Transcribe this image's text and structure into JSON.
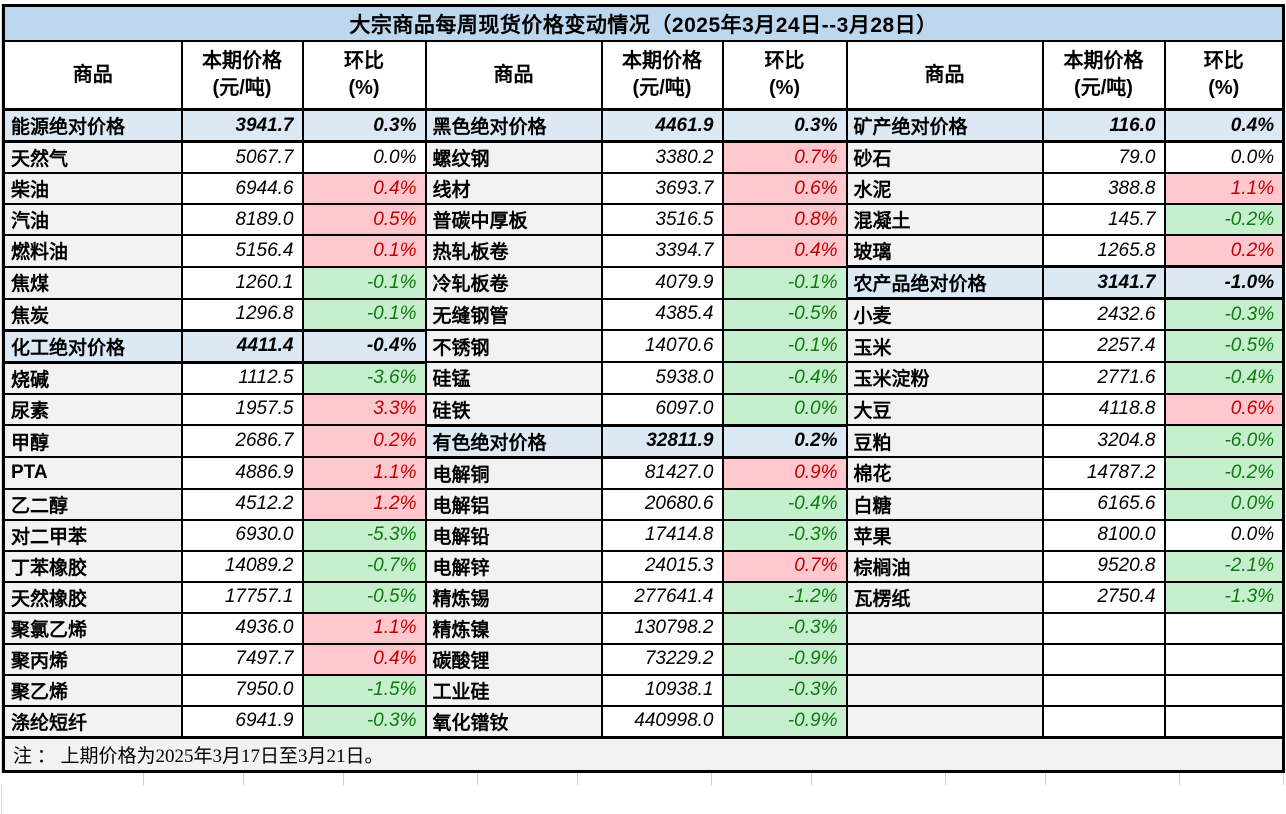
{
  "title": "大宗商品每周现货价格变动情况（2025年3月24日--3月28日）",
  "note": "注 ： 上期价格为2025年3月17日至3月21日。",
  "palette": {
    "title_bg": "#BDD7EE",
    "section_bg": "#DCE9F5",
    "name_bg": "#F2F2F2",
    "up_bg": "#FFC7CE",
    "up_text": "#C00000",
    "down_bg": "#C6EFCE",
    "down_text": "#0E7A0E"
  },
  "table": {
    "header": {
      "commodity": "商品",
      "price_line1": "本期价格",
      "price_line2": "(元/吨)",
      "pct_line1": "环比",
      "pct_line2": "(%)"
    },
    "row_count": 20,
    "groups": [
      {
        "rows": [
          {
            "type": "section",
            "name": "能源绝对价格",
            "price": "3941.7",
            "pct": "0.3%",
            "dir": "up"
          },
          {
            "type": "item",
            "name": "天然气",
            "price": "5067.7",
            "pct": "0.0%",
            "dir": "flat"
          },
          {
            "type": "item",
            "name": "柴油",
            "price": "6944.6",
            "pct": "0.4%",
            "dir": "up"
          },
          {
            "type": "item",
            "name": "汽油",
            "price": "8189.0",
            "pct": "0.5%",
            "dir": "up"
          },
          {
            "type": "item",
            "name": "燃料油",
            "price": "5156.4",
            "pct": "0.1%",
            "dir": "up"
          },
          {
            "type": "item",
            "name": "焦煤",
            "price": "1260.1",
            "pct": "-0.1%",
            "dir": "down"
          },
          {
            "type": "item",
            "name": "焦炭",
            "price": "1296.8",
            "pct": "-0.1%",
            "dir": "down"
          },
          {
            "type": "section",
            "name": "化工绝对价格",
            "price": "4411.4",
            "pct": "-0.4%",
            "dir": "down"
          },
          {
            "type": "item",
            "name": "烧碱",
            "price": "1112.5",
            "pct": "-3.6%",
            "dir": "down"
          },
          {
            "type": "item",
            "name": "尿素",
            "price": "1957.5",
            "pct": "3.3%",
            "dir": "up"
          },
          {
            "type": "item",
            "name": "甲醇",
            "price": "2686.7",
            "pct": "0.2%",
            "dir": "up"
          },
          {
            "type": "item",
            "name": "PTA",
            "price": "4886.9",
            "pct": "1.1%",
            "dir": "up"
          },
          {
            "type": "item",
            "name": "乙二醇",
            "price": "4512.2",
            "pct": "1.2%",
            "dir": "up"
          },
          {
            "type": "item",
            "name": "对二甲苯",
            "price": "6930.0",
            "pct": "-5.3%",
            "dir": "down"
          },
          {
            "type": "item",
            "name": "丁苯橡胶",
            "price": "14089.2",
            "pct": "-0.7%",
            "dir": "down"
          },
          {
            "type": "item",
            "name": "天然橡胶",
            "price": "17757.1",
            "pct": "-0.5%",
            "dir": "down"
          },
          {
            "type": "item",
            "name": "聚氯乙烯",
            "price": "4936.0",
            "pct": "1.1%",
            "dir": "up"
          },
          {
            "type": "item",
            "name": "聚丙烯",
            "price": "7497.7",
            "pct": "0.4%",
            "dir": "up"
          },
          {
            "type": "item",
            "name": "聚乙烯",
            "price": "7950.0",
            "pct": "-1.5%",
            "dir": "down"
          },
          {
            "type": "item",
            "name": "涤纶短纤",
            "price": "6941.9",
            "pct": "-0.3%",
            "dir": "down"
          }
        ]
      },
      {
        "rows": [
          {
            "type": "section",
            "name": "黑色绝对价格",
            "price": "4461.9",
            "pct": "0.3%",
            "dir": "up"
          },
          {
            "type": "item",
            "name": "螺纹钢",
            "price": "3380.2",
            "pct": "0.7%",
            "dir": "up"
          },
          {
            "type": "item",
            "name": "线材",
            "price": "3693.7",
            "pct": "0.6%",
            "dir": "up"
          },
          {
            "type": "item",
            "name": "普碳中厚板",
            "price": "3516.5",
            "pct": "0.8%",
            "dir": "up"
          },
          {
            "type": "item",
            "name": "热轧板卷",
            "price": "3394.7",
            "pct": "0.4%",
            "dir": "up"
          },
          {
            "type": "item",
            "name": "冷轧板卷",
            "price": "4079.9",
            "pct": "-0.1%",
            "dir": "down"
          },
          {
            "type": "item",
            "name": "无缝钢管",
            "price": "4385.4",
            "pct": "-0.5%",
            "dir": "down"
          },
          {
            "type": "item",
            "name": "不锈钢",
            "price": "14070.6",
            "pct": "-0.1%",
            "dir": "down"
          },
          {
            "type": "item",
            "name": "硅锰",
            "price": "5938.0",
            "pct": "-0.4%",
            "dir": "down"
          },
          {
            "type": "item",
            "name": "硅铁",
            "price": "6097.0",
            "pct": "0.0%",
            "dir": "down"
          },
          {
            "type": "section",
            "name": "有色绝对价格",
            "price": "32811.9",
            "pct": "0.2%",
            "dir": "up"
          },
          {
            "type": "item",
            "name": "电解铜",
            "price": "81427.0",
            "pct": "0.9%",
            "dir": "up"
          },
          {
            "type": "item",
            "name": "电解铝",
            "price": "20680.6",
            "pct": "-0.4%",
            "dir": "down"
          },
          {
            "type": "item",
            "name": "电解铅",
            "price": "17414.8",
            "pct": "-0.3%",
            "dir": "down"
          },
          {
            "type": "item",
            "name": "电解锌",
            "price": "24015.3",
            "pct": "0.7%",
            "dir": "up"
          },
          {
            "type": "item",
            "name": "精炼锡",
            "price": "277641.4",
            "pct": "-1.2%",
            "dir": "down"
          },
          {
            "type": "item",
            "name": "精炼镍",
            "price": "130798.2",
            "pct": "-0.3%",
            "dir": "down"
          },
          {
            "type": "item",
            "name": "碳酸锂",
            "price": "73229.2",
            "pct": "-0.9%",
            "dir": "down"
          },
          {
            "type": "item",
            "name": "工业硅",
            "price": "10938.1",
            "pct": "-0.3%",
            "dir": "down"
          },
          {
            "type": "item",
            "name": "氧化镨钕",
            "price": "440998.0",
            "pct": "-0.9%",
            "dir": "down"
          }
        ]
      },
      {
        "rows": [
          {
            "type": "section",
            "name": "矿产绝对价格",
            "price": "116.0",
            "pct": "0.4%",
            "dir": "up"
          },
          {
            "type": "item",
            "name": "砂石",
            "price": "79.0",
            "pct": "0.0%",
            "dir": "flat"
          },
          {
            "type": "item",
            "name": "水泥",
            "price": "388.8",
            "pct": "1.1%",
            "dir": "up"
          },
          {
            "type": "item",
            "name": "混凝土",
            "price": "145.7",
            "pct": "-0.2%",
            "dir": "down"
          },
          {
            "type": "item",
            "name": "玻璃",
            "price": "1265.8",
            "pct": "0.2%",
            "dir": "up"
          },
          {
            "type": "section",
            "name": "农产品绝对价格",
            "price": "3141.7",
            "pct": "-1.0%",
            "dir": "down"
          },
          {
            "type": "item",
            "name": "小麦",
            "price": "2432.6",
            "pct": "-0.3%",
            "dir": "down"
          },
          {
            "type": "item",
            "name": "玉米",
            "price": "2257.4",
            "pct": "-0.5%",
            "dir": "down"
          },
          {
            "type": "item",
            "name": "玉米淀粉",
            "price": "2771.6",
            "pct": "-0.4%",
            "dir": "down"
          },
          {
            "type": "item",
            "name": "大豆",
            "price": "4118.8",
            "pct": "0.6%",
            "dir": "up"
          },
          {
            "type": "item",
            "name": "豆粕",
            "price": "3204.8",
            "pct": "-6.0%",
            "dir": "down"
          },
          {
            "type": "item",
            "name": "棉花",
            "price": "14787.2",
            "pct": "-0.2%",
            "dir": "down"
          },
          {
            "type": "item",
            "name": "白糖",
            "price": "6165.6",
            "pct": "0.0%",
            "dir": "down"
          },
          {
            "type": "item",
            "name": "苹果",
            "price": "8100.0",
            "pct": "0.0%",
            "dir": "flat"
          },
          {
            "type": "item",
            "name": "棕榈油",
            "price": "9520.8",
            "pct": "-2.1%",
            "dir": "down"
          },
          {
            "type": "item",
            "name": "瓦楞纸",
            "price": "2750.4",
            "pct": "-1.3%",
            "dir": "down"
          },
          {
            "type": "empty",
            "name": "",
            "price": "",
            "pct": "",
            "dir": "flat"
          },
          {
            "type": "empty",
            "name": "",
            "price": "",
            "pct": "",
            "dir": "flat"
          },
          {
            "type": "empty",
            "name": "",
            "price": "",
            "pct": "",
            "dir": "flat"
          },
          {
            "type": "empty",
            "name": "",
            "price": "",
            "pct": "",
            "dir": "flat"
          }
        ]
      }
    ]
  }
}
